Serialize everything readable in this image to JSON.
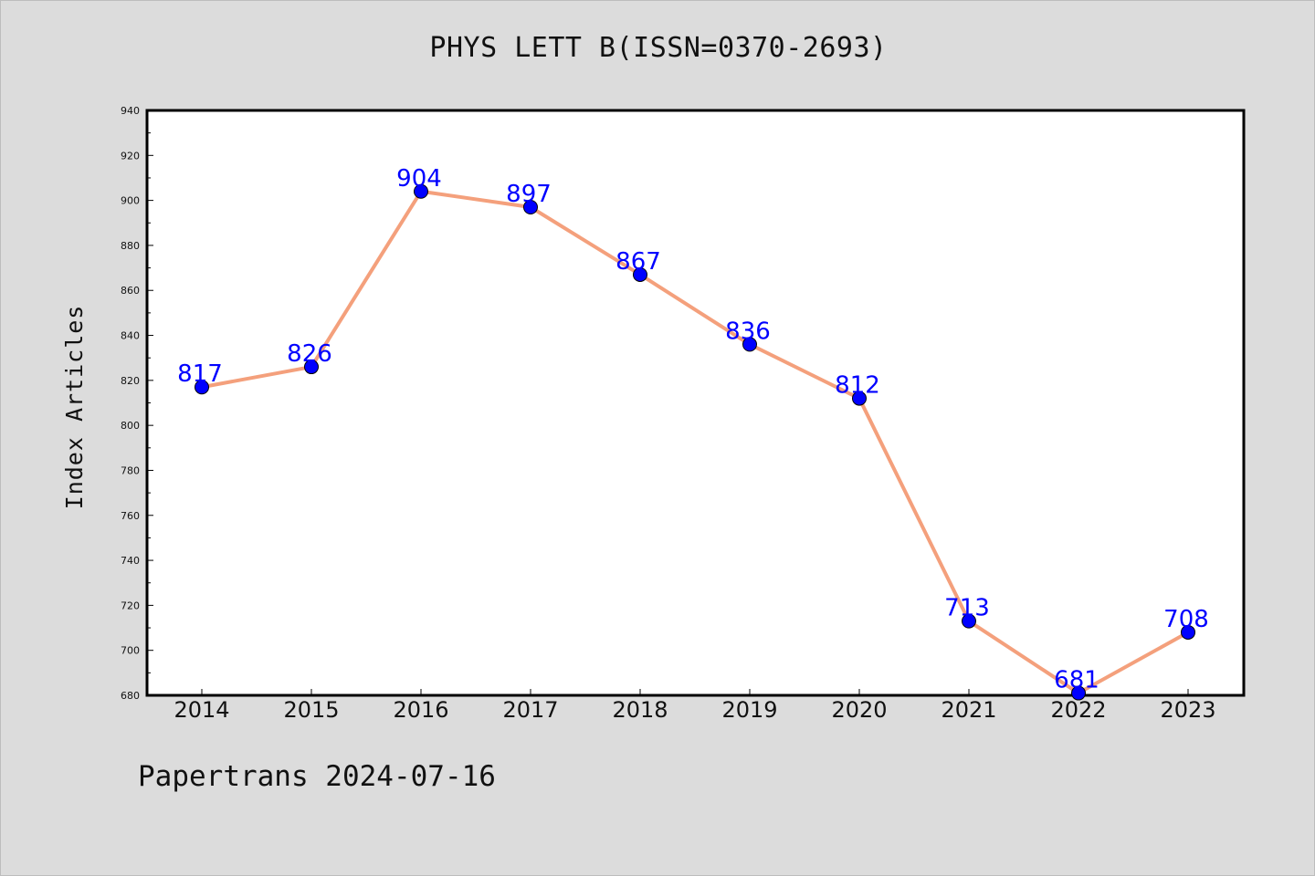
{
  "chart_data": {
    "type": "line",
    "title": "PHYS LETT B(ISSN=0370-2693)",
    "xlabel": "",
    "ylabel": "Index Articles",
    "categories": [
      "2014",
      "2015",
      "2016",
      "2017",
      "2018",
      "2019",
      "2020",
      "2021",
      "2022",
      "2023"
    ],
    "values": [
      817,
      826,
      904,
      897,
      867,
      836,
      812,
      713,
      681,
      708
    ],
    "data_labels": [
      "817",
      "826",
      "904",
      "897",
      "867",
      "836",
      "812",
      "713",
      "681",
      "708"
    ],
    "ylim": [
      680,
      940
    ],
    "y_ticks": [
      680,
      700,
      720,
      740,
      760,
      780,
      800,
      820,
      840,
      860,
      880,
      900,
      920,
      940
    ],
    "grid": false,
    "line_color": "#f4a07c",
    "marker_color": "#0000ff",
    "label_color": "#0000ff"
  },
  "footer": "Papertrans 2024-07-16"
}
